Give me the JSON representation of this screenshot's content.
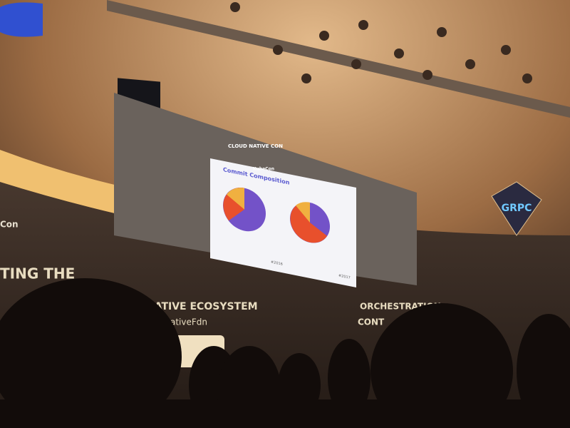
{
  "stage": {
    "slide": {
      "title": "Commit Composition",
      "left_year": "#2016",
      "right_year": "#2017"
    },
    "logo": {
      "name": "CLOUD NATIVE CON",
      "sub": "KubeCon"
    },
    "signs": [
      "GRPC"
    ],
    "left_wall": "Con",
    "wall_text": [
      "TING THE",
      "NATIVE ECOSYSTEM",
      "NativeFdn",
      "ORCHESTRATION",
      "CONT"
    ]
  }
}
